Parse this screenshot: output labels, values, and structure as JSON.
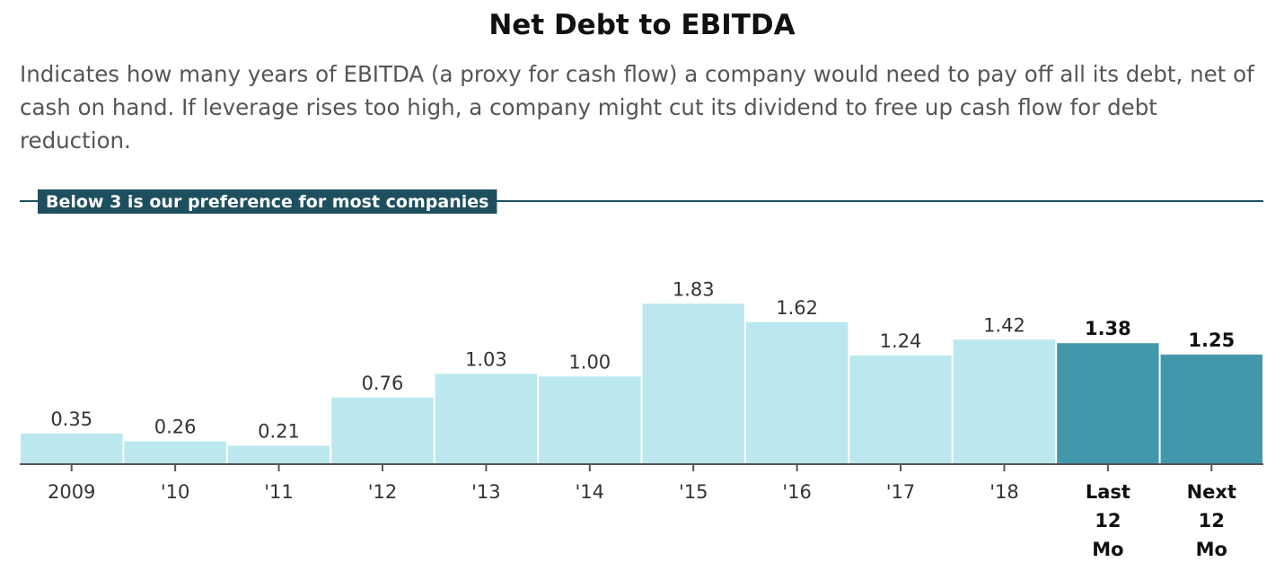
{
  "title": "Net Debt to EBITDA",
  "subtitle": "Indicates how many years of EBITDA (a proxy for cash flow) a company would need to pay off all its debt, net of cash on hand. If leverage rises too high, a company might cut its dividend to free up cash flow for debt reduction.",
  "colors": {
    "historical_bar": "#bae8ee",
    "highlight_bar": "#4298aa",
    "reference_line": "#1e4f5e",
    "axis": "#555555",
    "label_text": "#333333",
    "highlight_text": "#111111"
  },
  "chart_data": {
    "type": "bar",
    "categories": [
      "2009",
      "'10",
      "'11",
      "'12",
      "'13",
      "'14",
      "'15",
      "'16",
      "'17",
      "'18",
      "Last 12 Mo",
      "Next 12 Mo"
    ],
    "category_label_lines": [
      [
        "2009"
      ],
      [
        "'10"
      ],
      [
        "'11"
      ],
      [
        "'12"
      ],
      [
        "'13"
      ],
      [
        "'14"
      ],
      [
        "'15"
      ],
      [
        "'16"
      ],
      [
        "'17"
      ],
      [
        "'18"
      ],
      [
        "Last",
        "12",
        "Mo"
      ],
      [
        "Next",
        "12",
        "Mo"
      ]
    ],
    "values": [
      0.35,
      0.26,
      0.21,
      0.76,
      1.03,
      1.0,
      1.83,
      1.62,
      1.24,
      1.42,
      1.38,
      1.25
    ],
    "value_labels": [
      "0.35",
      "0.26",
      "0.21",
      "0.76",
      "1.03",
      "1.00",
      "1.83",
      "1.62",
      "1.24",
      "1.42",
      "1.38",
      "1.25"
    ],
    "highlighted": [
      false,
      false,
      false,
      false,
      false,
      false,
      false,
      false,
      false,
      false,
      true,
      true
    ],
    "ylim": [
      0,
      3
    ],
    "reference_line": {
      "value": 3,
      "label": "Below 3 is our preference for most companies"
    },
    "xlabel": "",
    "ylabel": "",
    "grid": false,
    "legend": "none"
  }
}
